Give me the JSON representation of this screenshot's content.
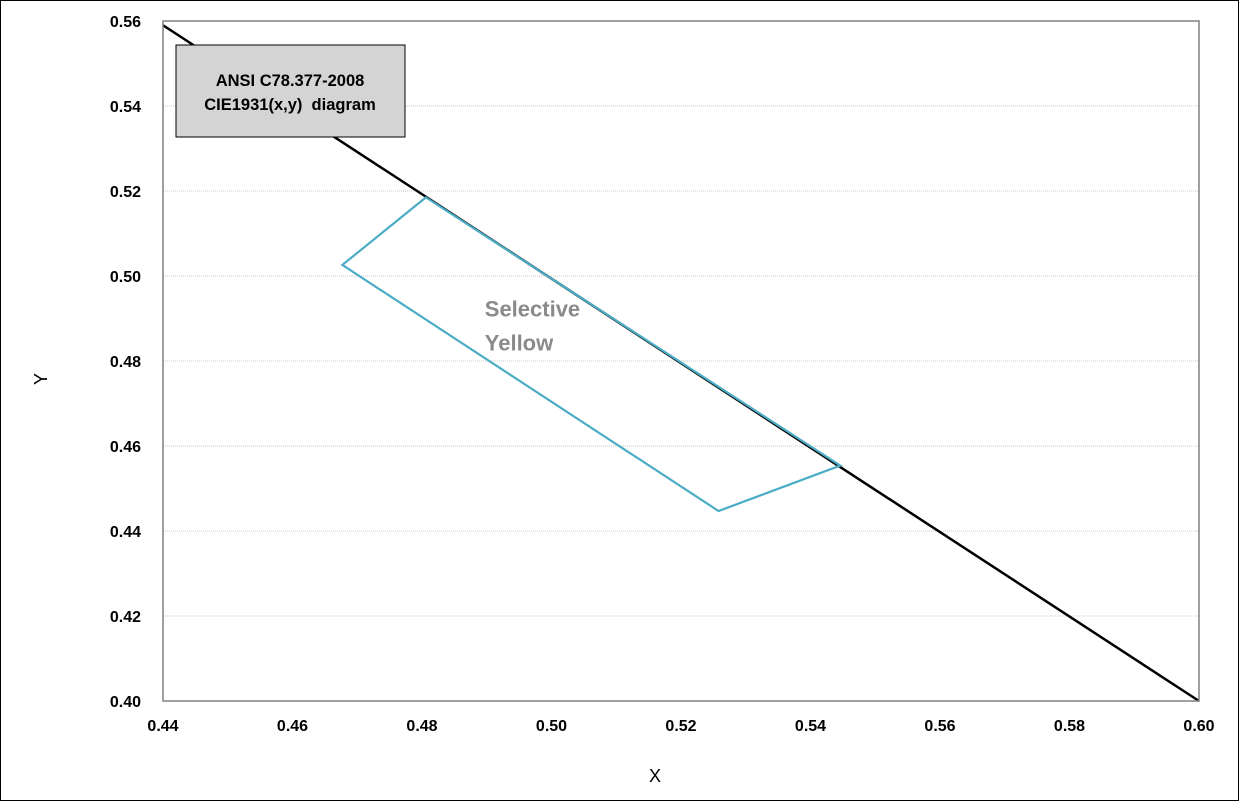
{
  "chart_data": {
    "type": "line",
    "title": "",
    "xlabel": "X",
    "ylabel": "Y",
    "xlim": [
      0.44,
      0.6
    ],
    "ylim": [
      0.4,
      0.56
    ],
    "x_ticks": [
      "0.44",
      "0.46",
      "0.48",
      "0.50",
      "0.52",
      "0.54",
      "0.56",
      "0.58",
      "0.60"
    ],
    "y_ticks": [
      "0.56",
      "0.54",
      "0.52",
      "0.50",
      "0.48",
      "0.46",
      "0.44",
      "0.42",
      "0.40"
    ],
    "x_tick_values": [
      0.44,
      0.46,
      0.48,
      0.5,
      0.52,
      0.54,
      0.56,
      0.58,
      0.6
    ],
    "y_tick_values": [
      0.56,
      0.54,
      0.52,
      0.5,
      0.48,
      0.46,
      0.44,
      0.42,
      0.4
    ],
    "grid": "horizontal",
    "series": [
      {
        "kind": "line",
        "color": "#000000",
        "points": [
          [
            0.44,
            0.559
          ],
          [
            0.6,
            0.4
          ]
        ]
      },
      {
        "kind": "polygon",
        "label": [
          "Selective",
          "Yellow"
        ],
        "color": "#4bacc6",
        "points": [
          [
            0.4806,
            0.5185
          ],
          [
            0.5446,
            0.4554
          ],
          [
            0.5258,
            0.4447
          ],
          [
            0.4677,
            0.5026
          ]
        ]
      }
    ],
    "annotation": {
      "lines": [
        "ANSI C78.377-2008",
        "CIE1931(x,y)  diagram"
      ],
      "placement": "top-left"
    }
  }
}
